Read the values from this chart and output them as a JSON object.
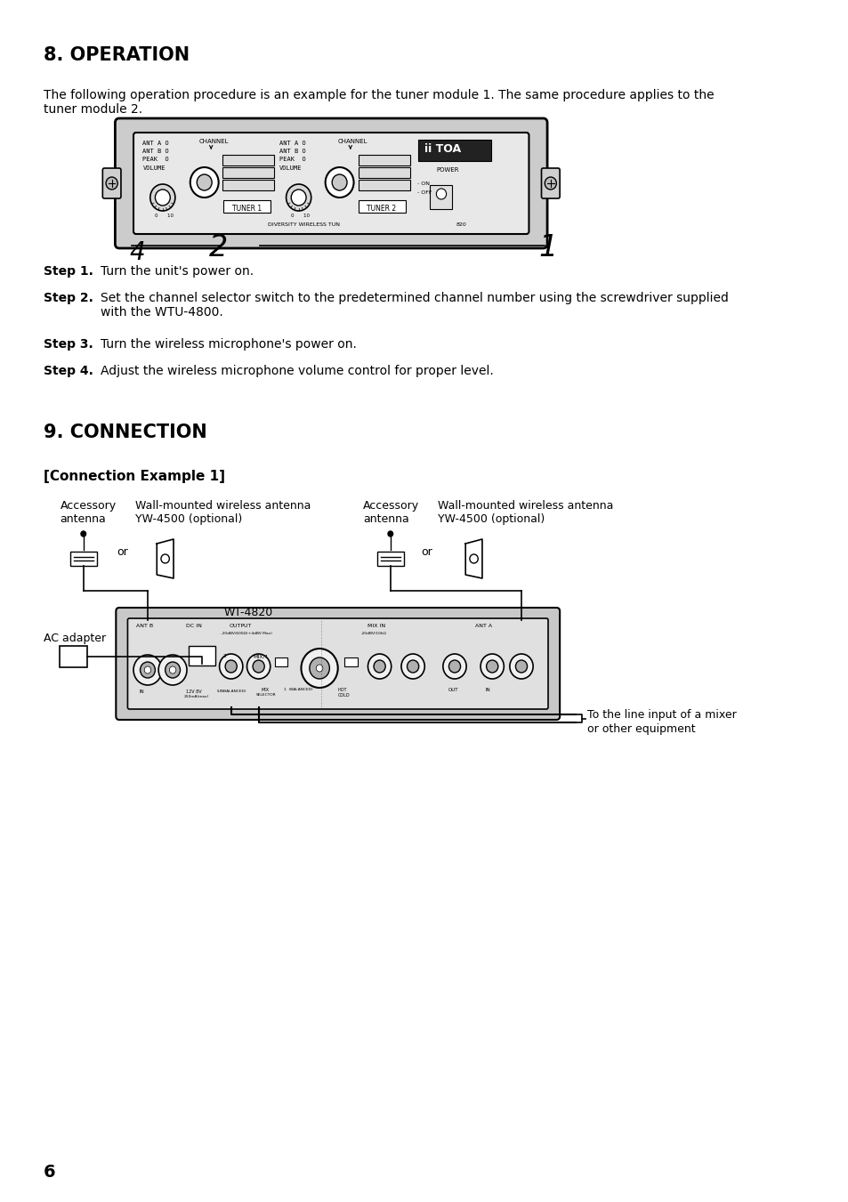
{
  "bg_color": "#ffffff",
  "page_num": "6",
  "section8_title": "8. OPERATION",
  "section8_body1": "The following operation procedure is an example for the tuner module 1. The same procedure applies to the",
  "section8_body2": "tuner module 2.",
  "step1": "Turn the unit's power on.",
  "step2_part1": "Set the channel selector switch to the predetermined channel number using the screwdriver supplied",
  "step2_part2": "with the WTU-4800.",
  "step3": "Turn the wireless microphone's power on.",
  "step4": "Adjust the wireless microphone volume control for proper level.",
  "section9_title": "9. CONNECTION",
  "conn_example": "[Connection Example 1]",
  "label_acc_ant_L": "Accessory\nantenna",
  "label_wall_ant_L": "Wall-mounted wireless antenna\nYW-4500 (optional)",
  "label_acc_ant_R": "Accessory\nantenna",
  "label_wall_ant_R": "Wall-mounted wireless antenna\nYW-4500 (optional)",
  "label_or_L": "or",
  "label_or_R": "or",
  "label_wt4820": "WT-4820",
  "label_ac_adapter": "AC adapter",
  "label_output": "To the line input of a mixer\nor other equipment",
  "text_color": "#000000",
  "line_color": "#000000"
}
